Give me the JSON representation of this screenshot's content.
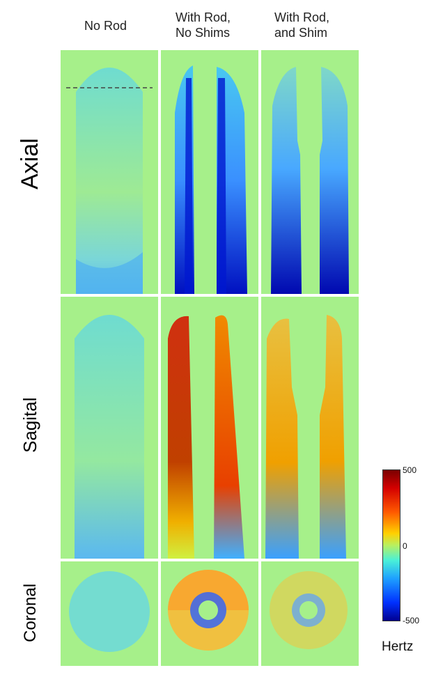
{
  "columns": [
    "No Rod",
    "With  Rod,\nNo Shims",
    "With   Rod,\nand Shim"
  ],
  "rows": [
    "Axial",
    "Sagital",
    "Coronal"
  ],
  "colorbar": {
    "max_label": "500",
    "mid_label": "0",
    "min_label": "-500",
    "unit": "Hertz"
  },
  "colors": {
    "background": "#a6f08a",
    "phantom": "#6fe0c8",
    "hot": "#c81e00",
    "cold": "#1a3cff"
  }
}
